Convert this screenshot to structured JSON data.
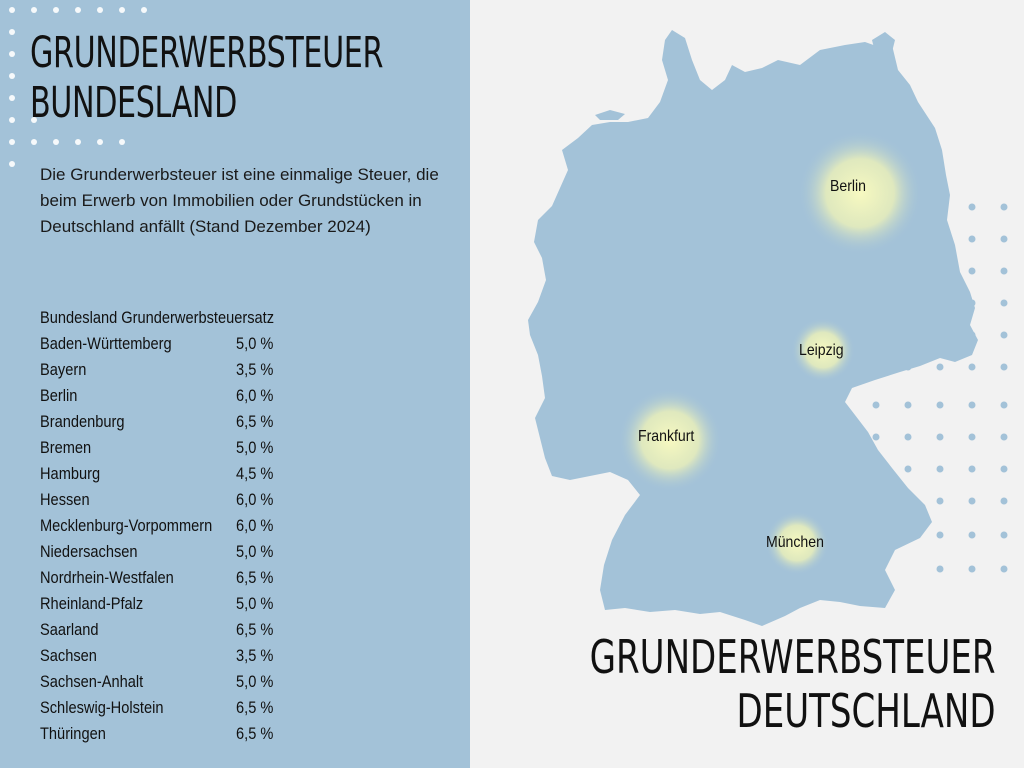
{
  "left_title": [
    "GRUNDERWERBSTEUER",
    "BUNDESLAND"
  ],
  "intro_text": "Die Grunderwerbsteuer ist eine einmalige Steuer, die beim Erwerb von Immobilien oder Grundstücken in Deutschland anfällt (Stand Dezember 2024)",
  "table": {
    "header": "Bundesland Grunderwerbsteuersatz",
    "rows": [
      {
        "state": "Baden-Württemberg",
        "rate": "5,0 %"
      },
      {
        "state": "Bayern",
        "rate": "3,5 %"
      },
      {
        "state": "Berlin",
        "rate": "6,0 %"
      },
      {
        "state": "Brandenburg",
        "rate": "6,5 %"
      },
      {
        "state": "Bremen",
        "rate": "5,0 %"
      },
      {
        "state": "Hamburg",
        "rate": "4,5 %"
      },
      {
        "state": "Hessen",
        "rate": "6,0 %"
      },
      {
        "state": "Mecklenburg-Vorpommern",
        "rate": "6,0 %"
      },
      {
        "state": "Niedersachsen",
        "rate": "5,0 %"
      },
      {
        "state": "Nordrhein-Westfalen",
        "rate": "6,5 %"
      },
      {
        "state": "Rheinland-Pfalz",
        "rate": "5,0 %"
      },
      {
        "state": "Saarland",
        "rate": "6,5 %"
      },
      {
        "state": "Sachsen",
        "rate": "3,5 %"
      },
      {
        "state": "Sachsen-Anhalt",
        "rate": "5,0 %"
      },
      {
        "state": "Schleswig-Holstein",
        "rate": "6,5 %"
      },
      {
        "state": "Thüringen",
        "rate": "6,5 %"
      }
    ]
  },
  "map": {
    "country_color": "#a3c2d8",
    "highlight_color": "#f3f6b0",
    "cities": [
      {
        "name": "Berlin"
      },
      {
        "name": "Leipzig"
      },
      {
        "name": "Frankfurt"
      },
      {
        "name": "München"
      }
    ]
  },
  "right_title": [
    "GRUNDERWERBSTEUER",
    "DEUTSCHLAND"
  ],
  "colors": {
    "panel": "#a3c2d8",
    "background": "#f2f2f2",
    "text": "#111111"
  }
}
